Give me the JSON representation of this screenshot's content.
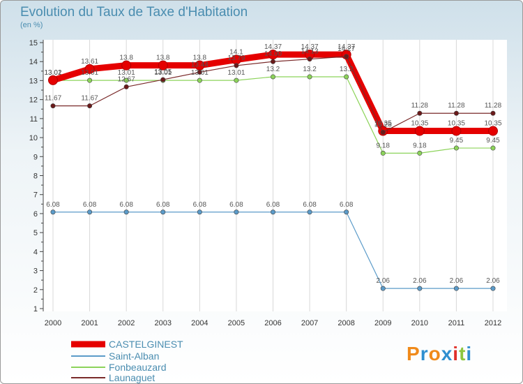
{
  "chart_data": {
    "type": "line",
    "title": "Evolution du Taux de Taxe d'Habitation",
    "subtitle": "(en %)",
    "x": [
      "2000",
      "2001",
      "2002",
      "2003",
      "2004",
      "2005",
      "2006",
      "2007",
      "2008",
      "2009",
      "2010",
      "2011",
      "2012"
    ],
    "ylim": [
      1,
      15
    ],
    "yticks": [
      1,
      2,
      3,
      4,
      5,
      6,
      7,
      8,
      9,
      10,
      11,
      12,
      13,
      14,
      15
    ],
    "series": [
      {
        "name": "CASTELGINEST",
        "color": "#e50000",
        "values": [
          13.02,
          13.61,
          13.8,
          13.8,
          13.8,
          14.1,
          14.37,
          14.37,
          14.37,
          10.35,
          10.35,
          10.35,
          10.35
        ],
        "labels": [
          "13.02",
          "13.61",
          "13.8",
          "13.8",
          "13.8",
          "14.1",
          "14.37",
          "14.37",
          "14.37",
          "10.35",
          "10.35",
          "10.35",
          "10.35"
        ]
      },
      {
        "name": "Saint-Alban",
        "color": "#5b9bc9",
        "values": [
          6.08,
          6.08,
          6.08,
          6.08,
          6.08,
          6.08,
          6.08,
          6.08,
          6.08,
          2.06,
          2.06,
          2.06,
          2.06
        ],
        "labels": [
          "6.08",
          "6.08",
          "6.08",
          "6.08",
          "6.08",
          "6.08",
          "6.08",
          "6.08",
          "6.08",
          "2.06",
          "2.06",
          "2.06",
          "2.06"
        ]
      },
      {
        "name": "Fonbeauzard",
        "color": "#8cd35a",
        "values": [
          13.01,
          13.01,
          13.01,
          13.01,
          13.01,
          13.01,
          13.2,
          13.2,
          13.2,
          9.18,
          9.18,
          9.45,
          9.45
        ],
        "labels": [
          "13.01",
          "13.01",
          "13.01",
          "13.01",
          "13.01",
          "13.01",
          "13.2",
          "13.2",
          "13.2",
          "9.18",
          "9.18",
          "9.45",
          "9.45"
        ]
      },
      {
        "name": "Launaguet",
        "color": "#7a2a2a",
        "values": [
          11.67,
          11.67,
          12.67,
          13.05,
          13.44,
          13.79,
          14.0,
          14.13,
          14.27,
          10.28,
          11.28,
          11.28,
          11.28
        ],
        "labels": [
          "11.67",
          "11.67",
          "12.67",
          "13.05",
          "13.44",
          "13.79",
          "14.00",
          "14.13",
          "14.27",
          "10.28",
          "11.28",
          "11.28",
          "11.28"
        ]
      }
    ]
  },
  "logo": {
    "text": "Proxiti",
    "letters": [
      "P",
      "r",
      "o",
      "x",
      "i",
      "t",
      "i"
    ],
    "colors": [
      "#f08a1a",
      "#2f8fd0",
      "#f08a1a",
      "#2f8fd0",
      "#e0302a",
      "#8cc63f",
      "#2f8fd0"
    ]
  }
}
